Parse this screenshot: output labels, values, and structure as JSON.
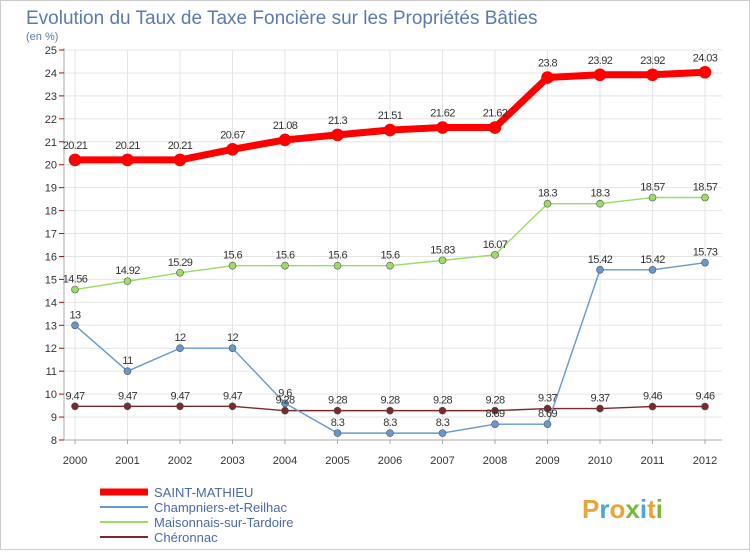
{
  "chart_data": {
    "type": "line",
    "title": "Evolution du Taux de Taxe Foncière sur les Propriétés Bâties",
    "subtitle": "(en %)",
    "x": [
      "2000",
      "2001",
      "2002",
      "2003",
      "2004",
      "2005",
      "2006",
      "2007",
      "2008",
      "2009",
      "2010",
      "2011",
      "2012"
    ],
    "ylim": [
      8,
      25
    ],
    "yticks": [
      8,
      9,
      10,
      11,
      12,
      13,
      14,
      15,
      16,
      17,
      18,
      19,
      20,
      21,
      22,
      23,
      24,
      25
    ],
    "grid": true,
    "legend": "bottom-left",
    "series": [
      {
        "name": "SAINT-MATHIEU",
        "color": "#ff0000",
        "values": [
          20.21,
          20.21,
          20.21,
          20.67,
          21.08,
          21.3,
          21.51,
          21.62,
          21.62,
          23.8,
          23.92,
          23.92,
          24.03
        ],
        "labels": [
          "20.21",
          "20.21",
          "20.21",
          "20.67",
          "21.08",
          "21.3",
          "21.51",
          "21.62",
          "21.62",
          "23.8",
          "23.92",
          "23.92",
          "24.03"
        ]
      },
      {
        "name": "Champniers-et-Reilhac",
        "color": "#6699cc",
        "values": [
          13,
          11,
          12,
          12,
          9.6,
          8.3,
          8.3,
          8.3,
          8.69,
          8.69,
          15.42,
          15.42,
          15.73
        ],
        "labels": [
          "13",
          "11",
          "12",
          "12",
          "9.6",
          "8.3",
          "8.3",
          "8.3",
          "8.69",
          "8.69",
          "15.42",
          "15.42",
          "15.73"
        ]
      },
      {
        "name": "Maisonnais-sur-Tardoire",
        "color": "#99dd66",
        "values": [
          14.56,
          14.92,
          15.29,
          15.6,
          15.6,
          15.6,
          15.6,
          15.83,
          16.07,
          18.3,
          18.3,
          18.57,
          18.57
        ],
        "labels": [
          "14.56",
          "14.92",
          "15.29",
          "15.6",
          "15.6",
          "15.6",
          "15.6",
          "15.83",
          "16.07",
          "18.3",
          "18.3",
          "18.57",
          "18.57"
        ]
      },
      {
        "name": "Chéronnac",
        "color": "#7a2a2a",
        "values": [
          9.47,
          9.47,
          9.47,
          9.47,
          9.28,
          9.28,
          9.28,
          9.28,
          9.28,
          9.37,
          9.37,
          9.46,
          9.46
        ],
        "labels": [
          "9.47",
          "9.47",
          "9.47",
          "9.47",
          "9.28",
          "9.28",
          "9.28",
          "9.28",
          "9.28",
          "9.37",
          "9.37",
          "9.46",
          "9.46"
        ]
      }
    ]
  },
  "logo": {
    "text": "Proxiti"
  }
}
